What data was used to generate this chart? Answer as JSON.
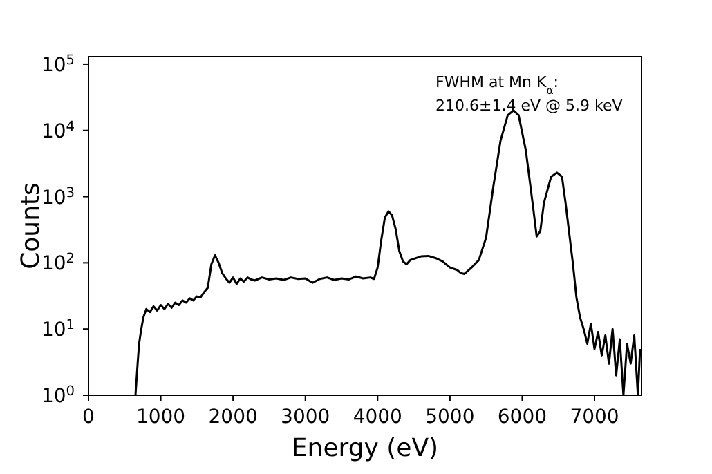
{
  "chart_data": {
    "type": "line",
    "xlabel": "Energy (eV)",
    "ylabel": "Counts",
    "log": "y",
    "marker": "none",
    "line_style": "solid",
    "annotations": [
      "FWHM at Mn K$_{α}$:",
      "210.6±1.4 eV @ 5.9 keV"
    ],
    "xlim": [
      0,
      7650
    ],
    "xticks": [
      0,
      1000,
      2000,
      3000,
      4000,
      5000,
      6000,
      7000
    ],
    "ylim": [
      1,
      130000
    ],
    "yticks": [
      {
        "value": 1,
        "label": "10$^{0}$"
      },
      {
        "value": 10,
        "label": "10$^{1}$"
      },
      {
        "value": 100,
        "label": "10$^{2}$"
      },
      {
        "value": 1000,
        "label": "10$^{3}$"
      },
      {
        "value": 10000,
        "label": "10$^{4}$"
      },
      {
        "value": 100000,
        "label": "10$^{5}$"
      }
    ],
    "x": [
      650,
      680,
      700,
      730,
      760,
      800,
      850,
      900,
      950,
      1000,
      1050,
      1100,
      1150,
      1200,
      1250,
      1300,
      1350,
      1400,
      1450,
      1500,
      1550,
      1600,
      1650,
      1700,
      1750,
      1800,
      1850,
      1900,
      1950,
      2000,
      2050,
      2100,
      2150,
      2200,
      2250,
      2300,
      2400,
      2500,
      2600,
      2700,
      2800,
      2900,
      3000,
      3100,
      3200,
      3300,
      3400,
      3500,
      3600,
      3700,
      3800,
      3900,
      3950,
      4000,
      4050,
      4100,
      4150,
      4200,
      4250,
      4300,
      4350,
      4400,
      4450,
      4500,
      4600,
      4700,
      4800,
      4900,
      5000,
      5100,
      5150,
      5200,
      5300,
      5400,
      5500,
      5600,
      5700,
      5800,
      5880,
      5950,
      6050,
      6150,
      6200,
      6250,
      6300,
      6400,
      6480,
      6550,
      6600,
      6650,
      6700,
      6750,
      6800,
      6850,
      6900,
      6950,
      7000,
      7050,
      7100,
      7150,
      7200,
      7250,
      7300,
      7350,
      7400,
      7450,
      7500,
      7550,
      7600,
      7630
    ],
    "series": [
      {
        "color": "#000000",
        "values": [
          1,
          3,
          6,
          10,
          15,
          20,
          18,
          22,
          19,
          23,
          20,
          24,
          21,
          25,
          23,
          27,
          25,
          29,
          27,
          31,
          30,
          36,
          42,
          95,
          130,
          100,
          70,
          58,
          50,
          60,
          48,
          58,
          52,
          60,
          56,
          54,
          60,
          56,
          58,
          55,
          60,
          57,
          58,
          50,
          57,
          60,
          55,
          58,
          56,
          62,
          58,
          60,
          57,
          85,
          220,
          480,
          600,
          520,
          320,
          150,
          105,
          95,
          110,
          115,
          125,
          127,
          118,
          105,
          85,
          78,
          70,
          68,
          85,
          110,
          240,
          1400,
          7000,
          17000,
          20000,
          17000,
          5000,
          700,
          250,
          300,
          800,
          2000,
          2300,
          2000,
          800,
          280,
          100,
          30,
          15,
          10,
          6,
          12,
          5,
          9,
          4,
          8,
          3,
          10,
          2,
          7,
          1,
          6,
          3,
          8,
          1,
          5
        ]
      }
    ]
  }
}
